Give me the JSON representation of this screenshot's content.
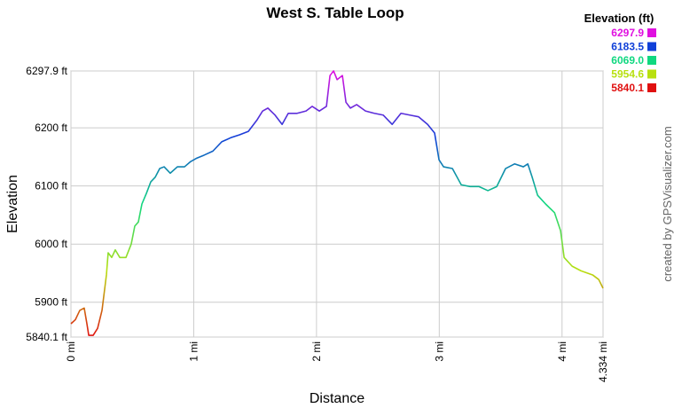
{
  "chart_data": {
    "type": "line",
    "title": "West S. Table Loop",
    "x_label": "Distance",
    "y_label": "Elevation",
    "credit": "created by GPSVisualizer.com",
    "legend": {
      "title": "Elevation (ft)",
      "entries": [
        {
          "value": 6297.9,
          "label": "6297.9",
          "color": "#e010e0"
        },
        {
          "value": 6183.5,
          "label": "6183.5",
          "color": "#1040d8"
        },
        {
          "value": 6069,
          "label": "6069.0",
          "color": "#10d880"
        },
        {
          "value": 5954.6,
          "label": "5954.6",
          "color": "#b8e010"
        },
        {
          "value": 5840.1,
          "label": "5840.1",
          "color": "#e01010"
        }
      ]
    },
    "grid": true,
    "xlim": [
      0,
      4.334
    ],
    "ylim": [
      5840.1,
      6297.9
    ],
    "xticks": [
      {
        "value": 0,
        "label": "0 mi"
      },
      {
        "value": 1,
        "label": "1 mi"
      },
      {
        "value": 2,
        "label": "2 mi"
      },
      {
        "value": 3,
        "label": "3 mi"
      },
      {
        "value": 4,
        "label": "4 mi"
      },
      {
        "value": 4.334,
        "label": "4.334 mi"
      }
    ],
    "yticks": [
      {
        "value": 6297.9,
        "label": "6297.9 ft"
      },
      {
        "value": 6200,
        "label": "6200 ft"
      },
      {
        "value": 6100,
        "label": "6100 ft"
      },
      {
        "value": 6000,
        "label": "6000 ft"
      },
      {
        "value": 5900,
        "label": "5900 ft"
      },
      {
        "value": 5840.1,
        "label": "5840.1 ft"
      }
    ],
    "x": [
      0,
      0.036,
      0.072,
      0.108,
      0.13,
      0.145,
      0.181,
      0.217,
      0.253,
      0.289,
      0.303,
      0.332,
      0.361,
      0.398,
      0.448,
      0.491,
      0.52,
      0.549,
      0.578,
      0.614,
      0.65,
      0.686,
      0.723,
      0.759,
      0.809,
      0.867,
      0.925,
      0.975,
      1.026,
      1.084,
      1.156,
      1.228,
      1.301,
      1.373,
      1.445,
      1.517,
      1.561,
      1.604,
      1.662,
      1.72,
      1.77,
      1.842,
      1.915,
      1.965,
      2.023,
      2.081,
      2.11,
      2.139,
      2.168,
      2.211,
      2.24,
      2.276,
      2.327,
      2.399,
      2.471,
      2.543,
      2.616,
      2.688,
      2.76,
      2.832,
      2.905,
      2.962,
      2.998,
      3.035,
      3.107,
      3.179,
      3.251,
      3.324,
      3.396,
      3.468,
      3.54,
      3.613,
      3.685,
      3.721,
      3.757,
      3.801,
      3.866,
      3.939,
      3.988,
      4.017,
      4.082,
      4.155,
      4.249,
      4.299,
      4.334
    ],
    "values": [
      5863,
      5870,
      5886,
      5890,
      5863,
      5843,
      5843,
      5855,
      5886,
      5947,
      5985,
      5977,
      5990,
      5977,
      5977,
      6000,
      6031,
      6038,
      6069,
      6087,
      6107,
      6115,
      6130,
      6133,
      6122,
      6133,
      6133,
      6142,
      6148,
      6153,
      6160,
      6176,
      6183,
      6188,
      6194,
      6214,
      6229,
      6234,
      6222,
      6206,
      6225,
      6225,
      6229,
      6237,
      6229,
      6237,
      6290,
      6298,
      6283,
      6290,
      6244,
      6234,
      6240,
      6229,
      6225,
      6222,
      6206,
      6225,
      6222,
      6219,
      6206,
      6191,
      6145,
      6133,
      6130,
      6102,
      6099,
      6099,
      6092,
      6099,
      6130,
      6138,
      6133,
      6138,
      6115,
      6084,
      6069,
      6054,
      6023,
      5977,
      5962,
      5954,
      5947,
      5939,
      5924
    ]
  }
}
